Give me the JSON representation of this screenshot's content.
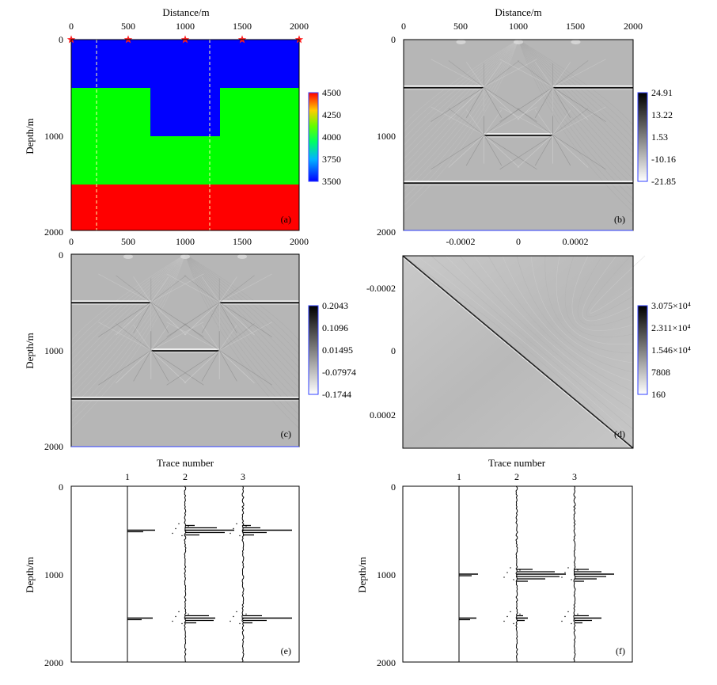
{
  "figure": {
    "panels": {
      "a": {
        "label": "(a)",
        "x_title": "Distance/m",
        "y_title": "Depth/m",
        "x_ticks": [
          "0",
          "500",
          "1000",
          "1500",
          "2000"
        ],
        "y_ticks": [
          "0",
          "1000",
          "2000"
        ],
        "colorbar_ticks": [
          "4500",
          "4250",
          "4000",
          "3750",
          "3500"
        ],
        "colors": {
          "low": "#0000ff",
          "mid": "#00ff00",
          "high": "#ff0000",
          "source": "#ff2020",
          "line": "#ffffaa"
        }
      },
      "b": {
        "label": "(b)",
        "x_title": "Distance/m",
        "x_ticks": [
          "0",
          "500",
          "1000",
          "1500",
          "2000"
        ],
        "y_ticks": [
          "0",
          "1000",
          "2000"
        ],
        "colorbar_ticks": [
          "24.91",
          "13.22",
          "1.53",
          "-10.16",
          "-21.85"
        ]
      },
      "c": {
        "label": "(c)",
        "y_title": "Depth/m",
        "x_ticks": [
          "0",
          "500",
          "1000",
          "1500",
          "2000"
        ],
        "y_ticks": [
          "0",
          "1000",
          "2000"
        ],
        "colorbar_ticks": [
          "0.2043",
          "0.1096",
          "0.01495",
          "-0.07974",
          "-0.1744"
        ]
      },
      "d": {
        "label": "(d)",
        "x_ticks": [
          "-0.0002",
          "0",
          "0.0002"
        ],
        "y_ticks": [
          "-0.0002",
          "0",
          "0.0002"
        ],
        "colorbar_ticks": [
          "3.075×10⁴",
          "2.311×10⁴",
          "1.546×10⁴",
          "7808",
          "160"
        ]
      },
      "e": {
        "label": "(e)",
        "x_title": "Trace number",
        "y_title": "Depth/m",
        "x_ticks": [
          "1",
          "2",
          "3"
        ],
        "y_ticks": [
          "0",
          "1000",
          "2000"
        ]
      },
      "f": {
        "label": "(f)",
        "x_title": "Trace number",
        "y_title": "Depth/m",
        "x_ticks": [
          "1",
          "2",
          "3"
        ],
        "y_ticks": [
          "0",
          "1000",
          "2000"
        ]
      }
    }
  }
}
